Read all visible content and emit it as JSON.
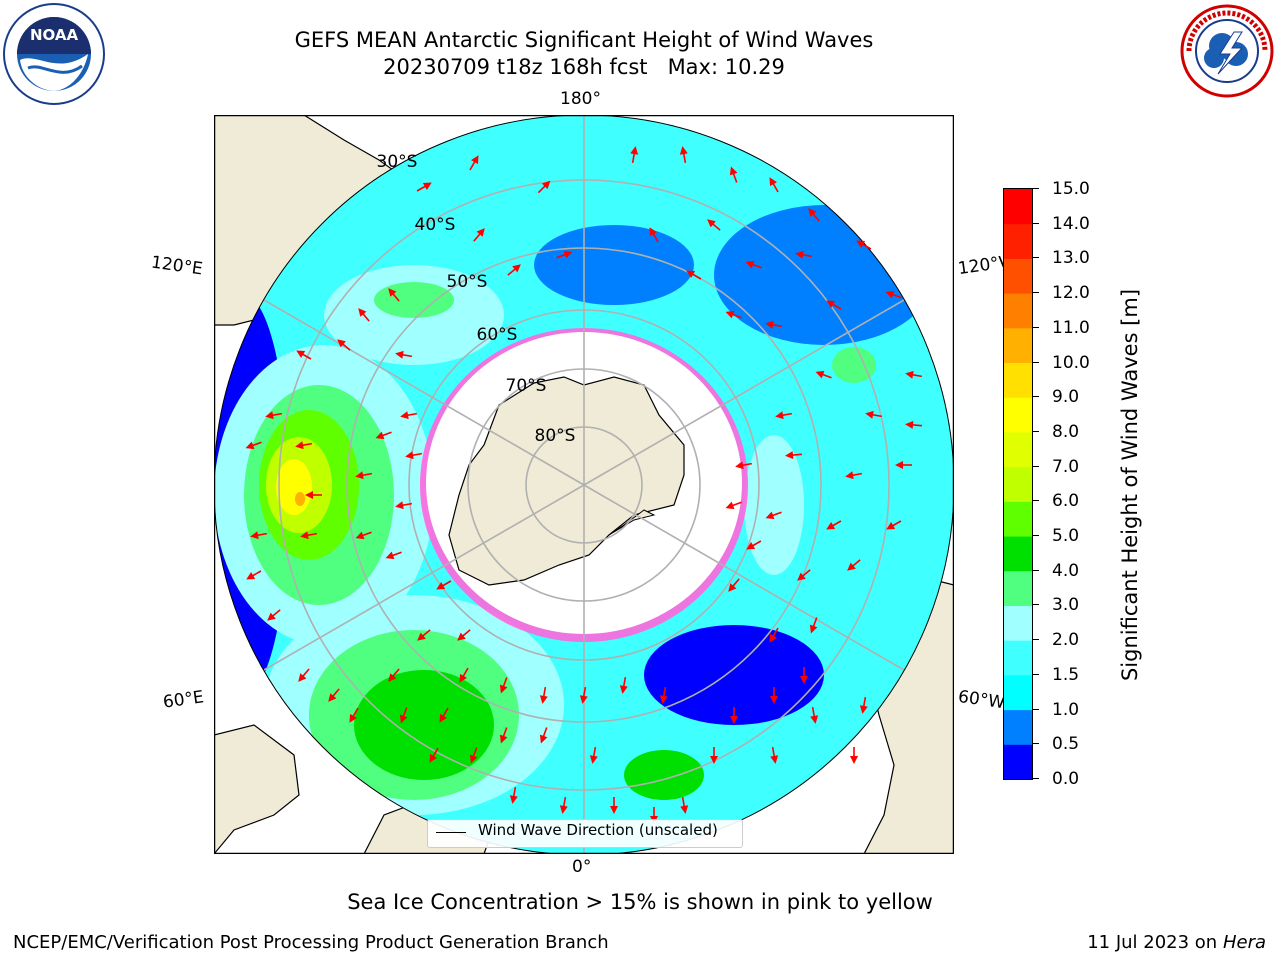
{
  "title": {
    "line1": "GEFS MEAN Antarctic Significant Height of Wind Waves",
    "line2": "20230709 t18z 168h fcst   Max: 10.29"
  },
  "logos": {
    "left": "NOAA",
    "right": "NATIONAL WEATHER SERVICE"
  },
  "map": {
    "projection": "south-polar-stereographic",
    "longitude_labels": {
      "top": "180°",
      "bottom": "0°",
      "upper_left": "120°E",
      "lower_left": "60°E",
      "upper_right": "120°W",
      "lower_right": "60°W"
    },
    "latitude_labels": [
      "30°S",
      "40°S",
      "50°S",
      "60°S",
      "70°S",
      "80°S"
    ],
    "legend_label": "Wind Wave Direction (unscaled)",
    "colors": {
      "land": "#efebd6",
      "sea_ice": "#ffffff",
      "ice_edge": "#ff33cc",
      "arrow": "#ff0000",
      "grid": "#b0b0b0"
    }
  },
  "colorbar": {
    "label": "Significant Height of Wind Waves [m]",
    "ticks": [
      "0.0",
      "0.5",
      "1.0",
      "1.5",
      "2.0",
      "3.0",
      "4.0",
      "5.0",
      "6.0",
      "7.0",
      "8.0",
      "9.0",
      "10.0",
      "11.0",
      "12.0",
      "13.0",
      "14.0",
      "15.0"
    ],
    "colors": [
      "#0000ff",
      "#0080ff",
      "#00ffff",
      "#40ffff",
      "#a0ffff",
      "#50ff80",
      "#00e000",
      "#60ff00",
      "#c0ff00",
      "#e0ff00",
      "#ffff00",
      "#ffe000",
      "#ffb000",
      "#ff8000",
      "#ff5000",
      "#ff2000",
      "#ff0000"
    ]
  },
  "note": "Sea Ice Concentration > 15% is shown in pink to yellow",
  "footer": {
    "left": "NCEP/EMC/Verification Post Processing Product Generation Branch",
    "right_date": "11 Jul 2023 on",
    "right_host": "Hera"
  }
}
